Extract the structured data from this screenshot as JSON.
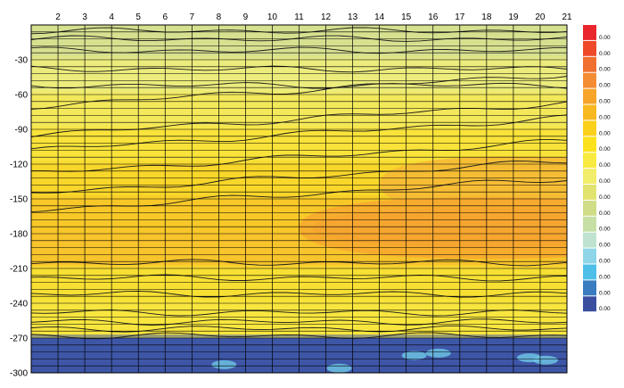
{
  "chart_data": {
    "type": "heatmap",
    "title": "",
    "xlabel": "",
    "ylabel": "",
    "x_ticks": [
      2,
      3,
      4,
      5,
      6,
      7,
      8,
      9,
      10,
      11,
      12,
      13,
      14,
      15,
      16,
      17,
      18,
      19,
      20,
      21
    ],
    "y_ticks": [
      -30,
      -60,
      -90,
      -120,
      -150,
      -180,
      -210,
      -240,
      -270,
      -300
    ],
    "xlim": [
      1,
      21
    ],
    "ylim": [
      -300,
      0
    ],
    "x_tick_position": "top",
    "grid": true,
    "legend_position": "right",
    "legend": {
      "labels": [
        "0.00",
        "0.00",
        "0.00",
        "0.00",
        "0.00",
        "0.00",
        "0.00",
        "0.00",
        "0.00",
        "0.00",
        "0.00",
        "0.00",
        "0.00",
        "0.00",
        "0.00",
        "0.00",
        "0.00",
        "0.00"
      ],
      "colors": [
        "#e8262b",
        "#ee4a2a",
        "#f07030",
        "#f48c34",
        "#f7a42b",
        "#f8b820",
        "#fbd01a",
        "#fbe21c",
        "#f8ea40",
        "#f2ed6a",
        "#e1e36e",
        "#d0dc86",
        "#c6dfa4",
        "#bfe3cf",
        "#8ed5e8",
        "#4dbfe8",
        "#3a7cc0",
        "#3a4fa0"
      ]
    },
    "band_edges": [
      0,
      -30,
      -60,
      -90,
      -120,
      -150,
      -180,
      -210,
      -240,
      -270,
      -300
    ],
    "band_colors": [
      "#d7e08f",
      "#ecec7d",
      "#f3e85a",
      "#f9e33a",
      "#f9d62a",
      "#f8c828",
      "#f8c42c",
      "#f7e033",
      "#f8e63f",
      "#3e56a6"
    ],
    "regions": [
      {
        "name": "orange-zone",
        "color": "#f6b936",
        "x_range": [
          14,
          21
        ],
        "y_range": [
          -115,
          -160
        ]
      },
      {
        "name": "dark-orange-zone",
        "color": "#f19438",
        "x_range": [
          11.5,
          21
        ],
        "y_range": [
          -160,
          -190
        ]
      },
      {
        "name": "light-orange-zone",
        "color": "#f7a82e",
        "x_range": [
          11,
          21
        ],
        "y_range": [
          -150,
          -200
        ]
      }
    ]
  }
}
